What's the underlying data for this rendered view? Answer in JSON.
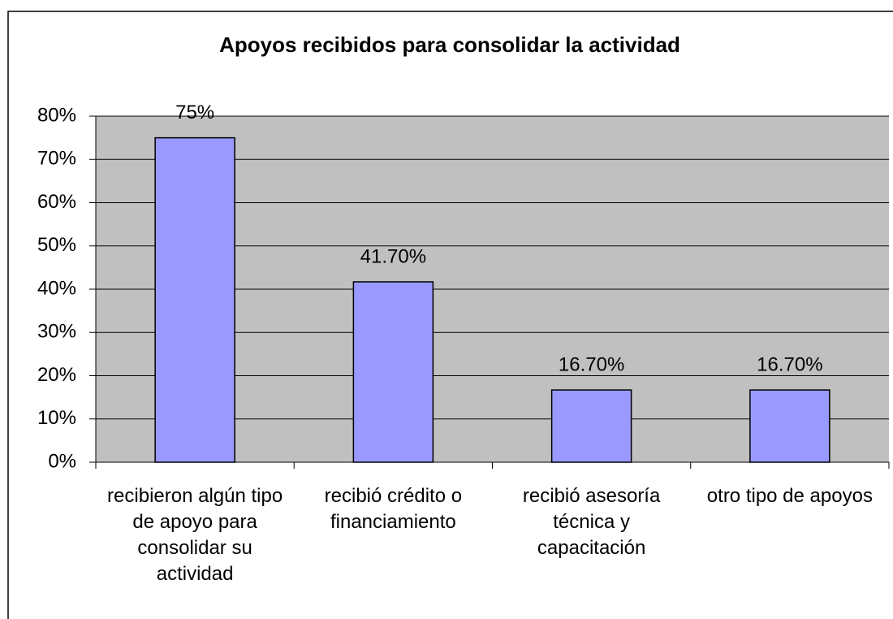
{
  "chart_data": {
    "type": "bar",
    "title": "Apoyos recibidos para consolidar la actividad",
    "categories": [
      "recibieron algún tipo de apoyo para consolidar su actividad",
      "recibió crédito o financiamiento",
      "recibió asesoría técnica y capacitación",
      "otro tipo de apoyos"
    ],
    "values": [
      75,
      41.7,
      16.7,
      16.7
    ],
    "value_labels": [
      "75%",
      "41.70%",
      "16.70%",
      "16.70%"
    ],
    "color": "#9999ff",
    "ylim": [
      0,
      80
    ],
    "yticks": [
      {
        "value": 0,
        "label": "0%"
      },
      {
        "value": 10,
        "label": "10%"
      },
      {
        "value": 20,
        "label": "20%"
      },
      {
        "value": 30,
        "label": "30%"
      },
      {
        "value": 40,
        "label": "40%"
      },
      {
        "value": 50,
        "label": "50%"
      },
      {
        "value": 60,
        "label": "60%"
      },
      {
        "value": 70,
        "label": "70%"
      },
      {
        "value": 80,
        "label": "80%"
      }
    ],
    "grid": true
  }
}
